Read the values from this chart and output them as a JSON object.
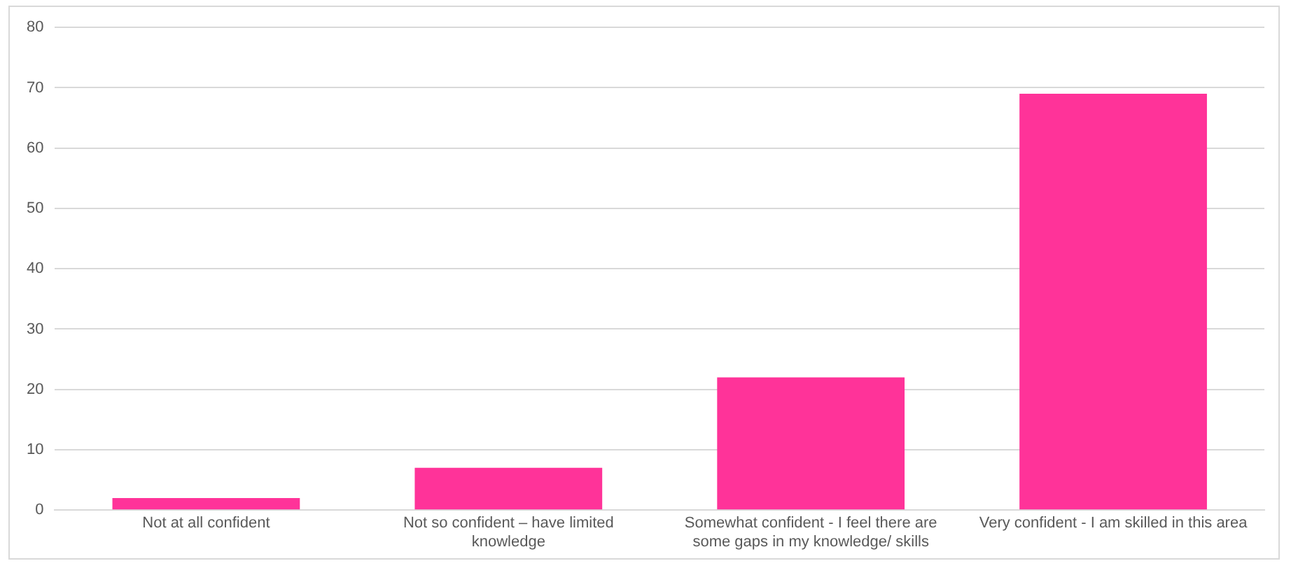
{
  "chart_data": {
    "type": "bar",
    "categories": [
      "Not at all confident",
      "Not so confident – have limited knowledge",
      "Somewhat confident - I feel there are some gaps in my knowledge/ skills",
      "Very confident - I am skilled in this area"
    ],
    "values": [
      2,
      7,
      22,
      69
    ],
    "color": "#ff3399",
    "ylim": [
      0,
      80
    ],
    "yticks": [
      0,
      10,
      20,
      30,
      40,
      50,
      60,
      70,
      80
    ],
    "grid": "y"
  }
}
